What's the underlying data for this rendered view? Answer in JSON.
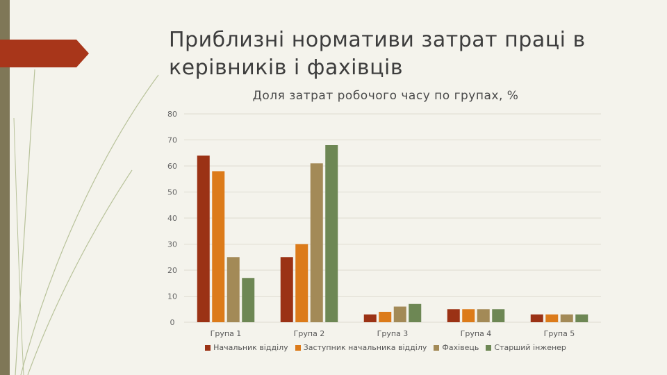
{
  "slide": {
    "title": "Приблизні  нормативи затрат праці в керівників і фахівців"
  },
  "colors": {
    "background": "#f4f3ec",
    "sidebar": "#7f7757",
    "accent_tab": "#a8361a",
    "series": [
      "#9b3215",
      "#dc7b1a",
      "#a38a57",
      "#6d8754"
    ]
  },
  "chart_data": {
    "type": "bar",
    "title": "Доля затрат робочого часу по групах, %",
    "categories": [
      "Група 1",
      "Група 2",
      "Група 3",
      "Група 4",
      "Група 5"
    ],
    "series": [
      {
        "name": "Начальник відділу",
        "values": [
          64,
          25,
          3,
          5,
          3
        ]
      },
      {
        "name": "Заступник начальника відділу",
        "values": [
          58,
          30,
          4,
          5,
          3
        ]
      },
      {
        "name": "Фахівець",
        "values": [
          25,
          61,
          6,
          5,
          3
        ]
      },
      {
        "name": "Старший інженер",
        "values": [
          17,
          68,
          7,
          5,
          3
        ]
      }
    ],
    "ylim": [
      0,
      80
    ],
    "yticks": [
      0,
      10,
      20,
      30,
      40,
      50,
      60,
      70,
      80
    ],
    "grid": true,
    "legend": "bottom"
  }
}
